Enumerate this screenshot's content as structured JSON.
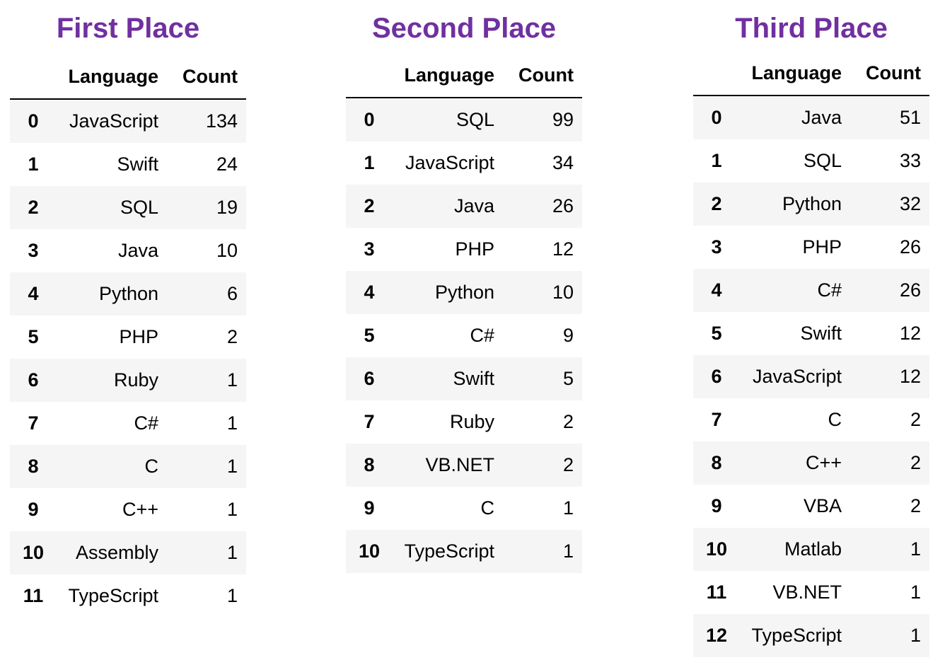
{
  "title_color": "#7030A0",
  "chart_data": [
    {
      "type": "table",
      "title": "First Place",
      "columns": [
        "Language",
        "Count"
      ],
      "rows": [
        {
          "index": "0",
          "language": "JavaScript",
          "count": 134
        },
        {
          "index": "1",
          "language": "Swift",
          "count": 24
        },
        {
          "index": "2",
          "language": "SQL",
          "count": 19
        },
        {
          "index": "3",
          "language": "Java",
          "count": 10
        },
        {
          "index": "4",
          "language": "Python",
          "count": 6
        },
        {
          "index": "5",
          "language": "PHP",
          "count": 2
        },
        {
          "index": "6",
          "language": "Ruby",
          "count": 1
        },
        {
          "index": "7",
          "language": "C#",
          "count": 1
        },
        {
          "index": "8",
          "language": "C",
          "count": 1
        },
        {
          "index": "9",
          "language": "C++",
          "count": 1
        },
        {
          "index": "10",
          "language": "Assembly",
          "count": 1
        },
        {
          "index": "11",
          "language": "TypeScript",
          "count": 1
        }
      ]
    },
    {
      "type": "table",
      "title": "Second Place",
      "columns": [
        "Language",
        "Count"
      ],
      "rows": [
        {
          "index": "0",
          "language": "SQL",
          "count": 99
        },
        {
          "index": "1",
          "language": "JavaScript",
          "count": 34
        },
        {
          "index": "2",
          "language": "Java",
          "count": 26
        },
        {
          "index": "3",
          "language": "PHP",
          "count": 12
        },
        {
          "index": "4",
          "language": "Python",
          "count": 10
        },
        {
          "index": "5",
          "language": "C#",
          "count": 9
        },
        {
          "index": "6",
          "language": "Swift",
          "count": 5
        },
        {
          "index": "7",
          "language": "Ruby",
          "count": 2
        },
        {
          "index": "8",
          "language": "VB.NET",
          "count": 2
        },
        {
          "index": "9",
          "language": "C",
          "count": 1
        },
        {
          "index": "10",
          "language": "TypeScript",
          "count": 1
        }
      ]
    },
    {
      "type": "table",
      "title": "Third Place",
      "columns": [
        "Language",
        "Count"
      ],
      "rows": [
        {
          "index": "0",
          "language": "Java",
          "count": 51
        },
        {
          "index": "1",
          "language": "SQL",
          "count": 33
        },
        {
          "index": "2",
          "language": "Python",
          "count": 32
        },
        {
          "index": "3",
          "language": "PHP",
          "count": 26
        },
        {
          "index": "4",
          "language": "C#",
          "count": 26
        },
        {
          "index": "5",
          "language": "Swift",
          "count": 12
        },
        {
          "index": "6",
          "language": "JavaScript",
          "count": 12
        },
        {
          "index": "7",
          "language": "C",
          "count": 2
        },
        {
          "index": "8",
          "language": "C++",
          "count": 2
        },
        {
          "index": "9",
          "language": "VBA",
          "count": 2
        },
        {
          "index": "10",
          "language": "Matlab",
          "count": 1
        },
        {
          "index": "11",
          "language": "VB.NET",
          "count": 1
        },
        {
          "index": "12",
          "language": "TypeScript",
          "count": 1
        }
      ]
    }
  ]
}
